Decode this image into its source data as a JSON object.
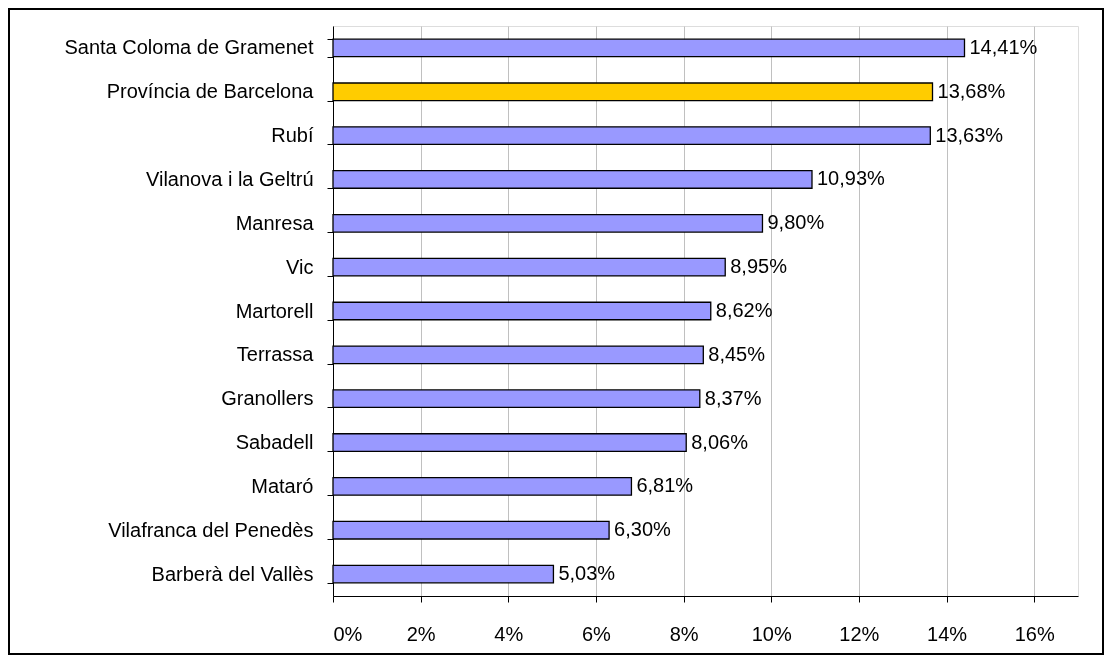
{
  "chart_data": {
    "type": "bar",
    "orientation": "horizontal",
    "categories": [
      "Santa Coloma de Gramenet",
      "Província de Barcelona",
      "Rubí",
      "Vilanova i la Geltrú",
      "Manresa",
      "Vic",
      "Martorell",
      "Terrassa",
      "Granollers",
      "Sabadell",
      "Mataró",
      "Vilafranca del Penedès",
      "Barberà del Vallès"
    ],
    "values": [
      14.41,
      13.68,
      13.63,
      10.93,
      9.8,
      8.95,
      8.62,
      8.45,
      8.37,
      8.06,
      6.81,
      6.3,
      5.03
    ],
    "colors": [
      "#9999ff",
      "#ffcc00",
      "#9999ff",
      "#9999ff",
      "#9999ff",
      "#9999ff",
      "#9999ff",
      "#9999ff",
      "#9999ff",
      "#9999ff",
      "#9999ff",
      "#9999ff",
      "#9999ff"
    ],
    "value_labels": [
      "14,41%",
      "13,68%",
      "13,63%",
      "10,93%",
      "9,80%",
      "8,95%",
      "8,62%",
      "8,45%",
      "8,37%",
      "8,06%",
      "6,81%",
      "6,30%",
      "5,03%"
    ],
    "xlim": [
      0,
      17
    ],
    "xticks": [
      {
        "value": 0,
        "label": "0%"
      },
      {
        "value": 2,
        "label": "2%"
      },
      {
        "value": 4,
        "label": "4%"
      },
      {
        "value": 6,
        "label": "6%"
      },
      {
        "value": 8,
        "label": "8%"
      },
      {
        "value": 10,
        "label": "10%"
      },
      {
        "value": 12,
        "label": "12%"
      },
      {
        "value": 14,
        "label": "14%"
      },
      {
        "value": 16,
        "label": "16%"
      }
    ],
    "grid": "x"
  }
}
